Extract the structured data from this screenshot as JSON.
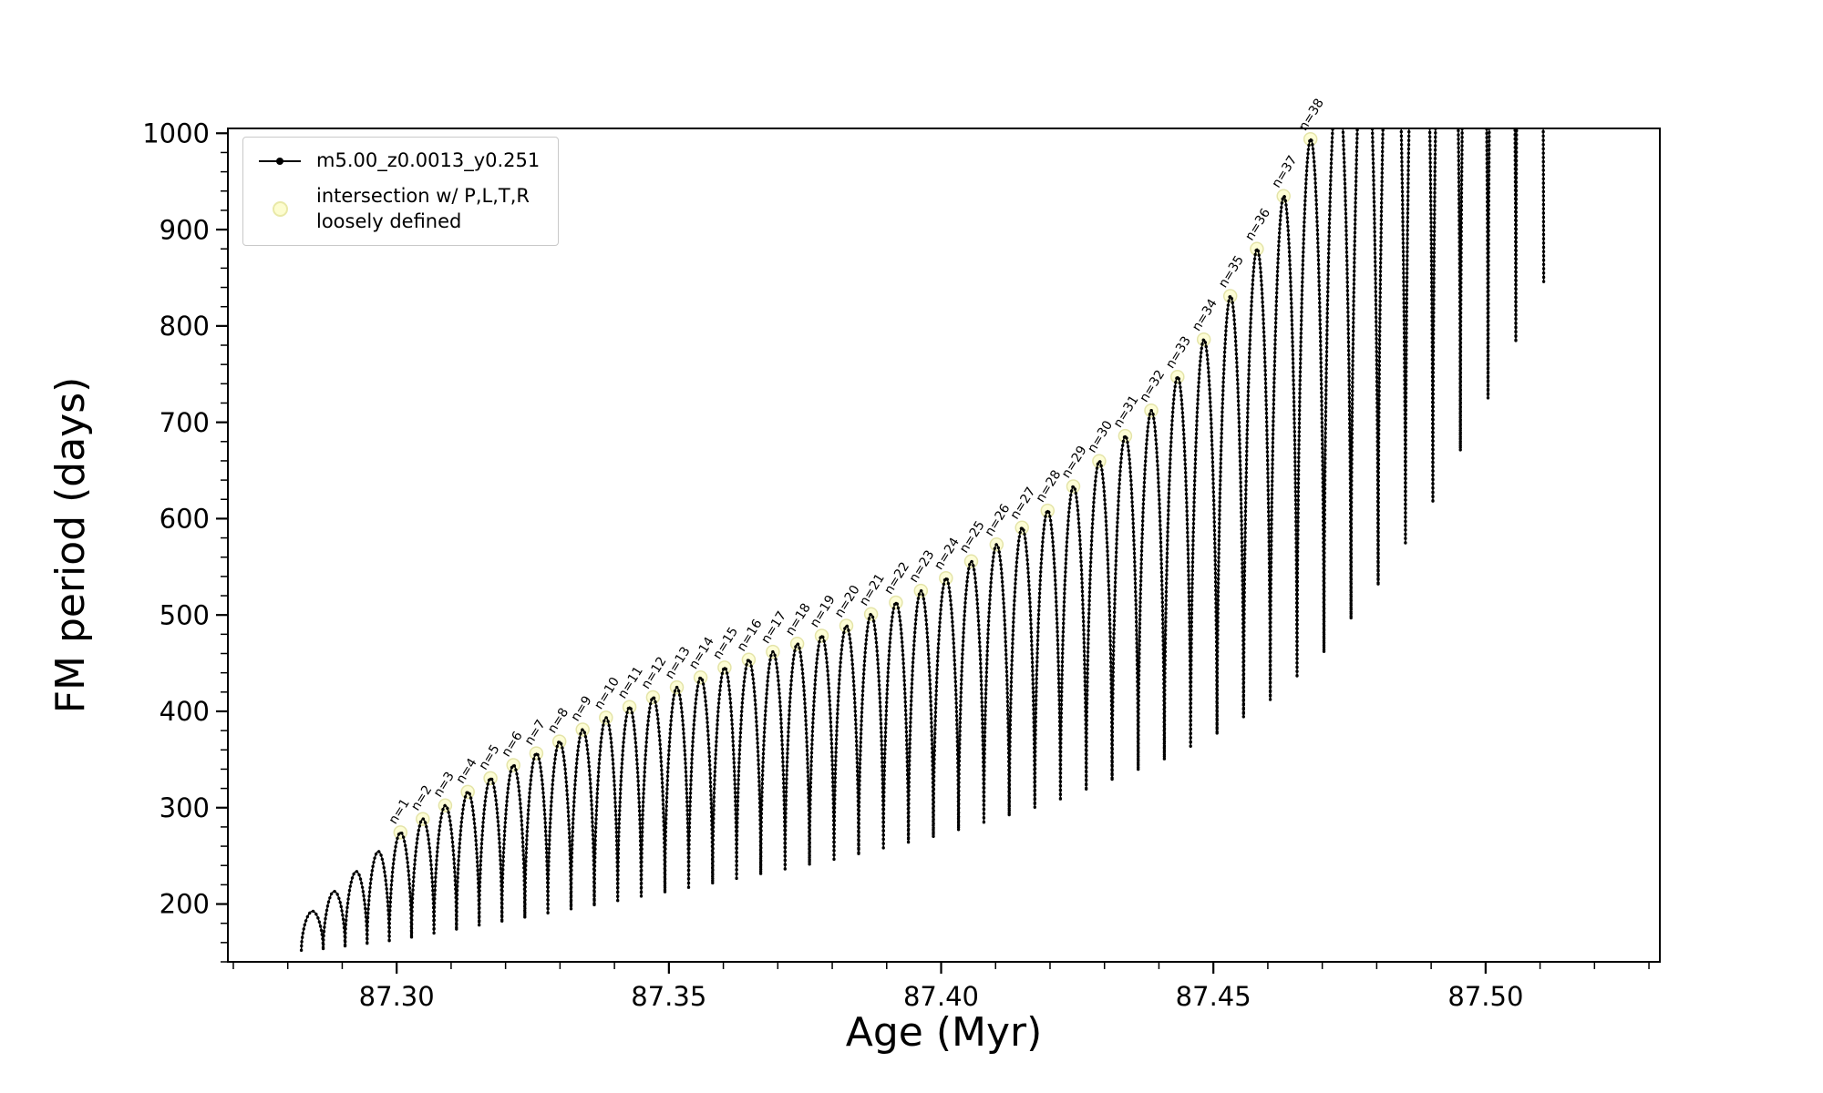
{
  "figure": {
    "background": "#ffffff"
  },
  "legend": {
    "series_label": "m5.00_z0.0013_y0.251",
    "intersection_label_line1": "intersection w/ P,L,T,R",
    "intersection_label_line2": "loosely defined"
  },
  "chart_data": {
    "type": "line",
    "title": "",
    "xlabel": "Age (Myr)",
    "ylabel": "FM period (days)",
    "xlim": [
      87.269,
      87.532
    ],
    "ylim": [
      140,
      1005
    ],
    "x_ticks": [
      87.3,
      87.35,
      87.4,
      87.45,
      87.5
    ],
    "x_tick_labels": [
      "87.30",
      "87.35",
      "87.40",
      "87.45",
      "87.50"
    ],
    "x_minor_step": 0.01,
    "y_ticks": [
      200,
      300,
      400,
      500,
      600,
      700,
      800,
      900,
      1000
    ],
    "y_tick_labels": [
      "200",
      "300",
      "400",
      "500",
      "600",
      "700",
      "800",
      "900",
      "1000"
    ],
    "y_minor_step": 20,
    "grid": false,
    "legend_position": "upper-left",
    "series_name": "m5.00_z0.0013_y0.251",
    "series_color": "#000000",
    "intersection_marker_color": "#fdfdd0",
    "intersection_marker_edge": "#e0e09a",
    "oscillations": {
      "description": "FM period oscillates in successive arches; peaks labeled n=1..38; arches past n=38 exceed the y-axis top and are clipped",
      "count": 50,
      "center_start": 87.2845,
      "center_step": 0.004,
      "center_step_quad": 1.15e-05,
      "labeled_start_index": 4,
      "label_rotation_deg": -58,
      "peak_labels": [
        "n=1",
        "n=2",
        "n=3",
        "n=4",
        "n=5",
        "n=6",
        "n=7",
        "n=8",
        "n=9",
        "n=10",
        "n=11",
        "n=12",
        "n=13",
        "n=14",
        "n=15",
        "n=16",
        "n=17",
        "n=18",
        "n=19",
        "n=20",
        "n=21",
        "n=22",
        "n=23",
        "n=24",
        "n=25",
        "n=26",
        "n=27",
        "n=28",
        "n=29",
        "n=30",
        "n=31",
        "n=32",
        "n=33",
        "n=34",
        "n=35",
        "n=36",
        "n=37",
        "n=38"
      ],
      "peak_envelope": {
        "ages": [
          87.284,
          87.3,
          87.32,
          87.34,
          87.36,
          87.38,
          87.4,
          87.42,
          87.44,
          87.45,
          87.46,
          87.47,
          87.48,
          87.49,
          87.5,
          87.512
        ],
        "periods": [
          190,
          272,
          340,
          398,
          445,
          482,
          535,
          610,
          720,
          800,
          900,
          1020,
          1170,
          1340,
          1530,
          1760
        ]
      },
      "trough_envelope": {
        "ages": [
          87.284,
          87.3,
          87.32,
          87.34,
          87.36,
          87.38,
          87.4,
          87.42,
          87.44,
          87.45,
          87.46,
          87.47,
          87.48,
          87.49,
          87.5,
          87.512
        ],
        "periods": [
          152,
          163,
          183,
          203,
          224,
          246,
          272,
          305,
          348,
          375,
          410,
          460,
          530,
          615,
          720,
          860
        ]
      }
    }
  }
}
